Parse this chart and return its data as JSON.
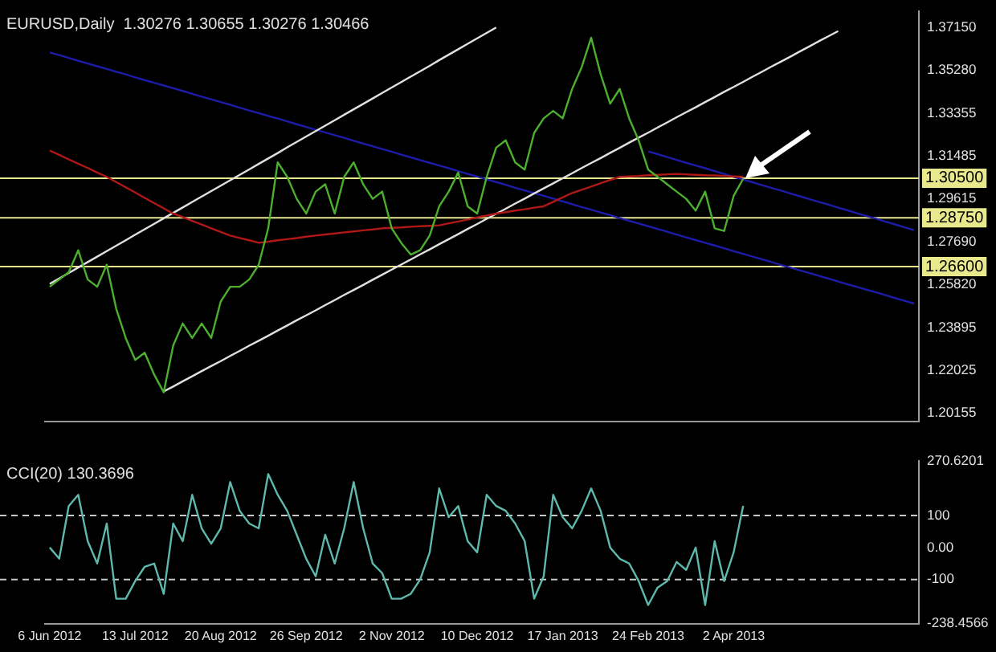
{
  "chart_data": [
    {
      "type": "line",
      "title": "EURUSD,Daily  1.30276 1.30655 1.30276 1.30466",
      "marker": "none",
      "categories": [
        null,
        null,
        null,
        null,
        null,
        null,
        null,
        null,
        null,
        null,
        null,
        null,
        null,
        null,
        null,
        null,
        null,
        null,
        null,
        null,
        null,
        null,
        null,
        null,
        null,
        null,
        null,
        null,
        null,
        null,
        null,
        null,
        null,
        null,
        null,
        null,
        null,
        null,
        null,
        null,
        null,
        null,
        null,
        null,
        null,
        null,
        null,
        null,
        null,
        null,
        null,
        null,
        null,
        null,
        null,
        null,
        null,
        null,
        null,
        null,
        null,
        null,
        null,
        null,
        null,
        null,
        null,
        null,
        null,
        null,
        null,
        null,
        null,
        null,
        null,
        null,
        null,
        null,
        null,
        null,
        null,
        null,
        null,
        null,
        null,
        null,
        null,
        null,
        null,
        null,
        null,
        null
      ],
      "ylim": [
        1.1977,
        1.3786
      ],
      "yticks": [
        {
          "value": 1.3715,
          "label": "1.37150"
        },
        {
          "value": 1.3528,
          "label": "1.35280"
        },
        {
          "value": 1.33355,
          "label": "1.33355"
        },
        {
          "value": 1.31485,
          "label": "1.31485"
        },
        {
          "value": 1.29615,
          "label": "1.29615"
        },
        {
          "value": 1.2769,
          "label": "1.27690"
        },
        {
          "value": 1.2582,
          "label": "1.25820"
        },
        {
          "value": 1.23895,
          "label": "1.23895"
        },
        {
          "value": 1.22025,
          "label": "1.22025"
        },
        {
          "value": 1.20155,
          "label": "1.20155"
        }
      ],
      "ref_lines": [
        {
          "axis": "y",
          "value": 1.305,
          "label": "1.30500",
          "color": "#e8e88c"
        },
        {
          "axis": "y",
          "value": 1.2875,
          "label": "1.28750",
          "color": "#e8e88c"
        },
        {
          "axis": "y",
          "value": 1.266,
          "label": "1.26600",
          "color": "#e8e88c"
        }
      ],
      "series": [
        {
          "color": "#4caf2e",
          "values": [
            1.2571,
            1.2603,
            1.2635,
            1.2732,
            1.2603,
            1.2571,
            1.2668,
            1.2474,
            1.2345,
            1.2248,
            1.228,
            1.2183,
            1.2105,
            1.2312,
            1.2409,
            1.2345,
            1.2409,
            1.2345,
            1.2506,
            1.2571,
            1.2571,
            1.2603,
            1.2668,
            1.2829,
            1.312,
            1.3056,
            1.2959,
            1.2894,
            1.2991,
            1.3023,
            1.2894,
            1.3056,
            1.312,
            1.3023,
            1.2959,
            1.2991,
            1.2829,
            1.2765,
            1.2713,
            1.2732,
            1.2797,
            1.2926,
            1.2991,
            1.3075,
            1.2926,
            1.2894,
            1.3056,
            1.3185,
            1.3217,
            1.312,
            1.3088,
            1.325,
            1.3314,
            1.3347,
            1.3314,
            1.3444,
            1.354,
            1.367,
            1.3508,
            1.3379,
            1.3444,
            1.3314,
            1.3217,
            1.3088,
            1.3056,
            1.3023,
            1.2991,
            1.2959,
            1.2907,
            1.2991,
            1.2829,
            1.2817,
            1.2972,
            1.3047,
            null,
            null,
            null,
            null,
            null,
            null,
            null,
            null,
            null,
            null,
            null,
            null,
            null,
            null,
            null,
            null,
            null,
            null
          ]
        },
        {
          "color": "#b01818",
          "values": [
            1.3172,
            1.3153,
            1.3133,
            1.3114,
            1.3095,
            1.3075,
            1.3056,
            1.3033,
            1.301,
            1.2987,
            1.2963,
            1.294,
            1.2917,
            1.2894,
            1.2878,
            1.2862,
            1.2846,
            1.2829,
            1.2813,
            1.2797,
            1.2786,
            1.2776,
            1.2765,
            1.277,
            1.2776,
            1.2781,
            1.2786,
            1.2792,
            1.2797,
            1.2802,
            1.2806,
            1.2811,
            1.2815,
            1.282,
            1.2824,
            1.2829,
            1.2831,
            1.2833,
            1.2836,
            1.2838,
            1.284,
            1.2842,
            1.2851,
            1.2859,
            1.2868,
            1.2877,
            1.2885,
            1.2894,
            1.29,
            1.2907,
            1.2913,
            1.292,
            1.2926,
            1.2946,
            1.2965,
            1.2985,
            1.2999,
            1.3013,
            1.3028,
            1.3042,
            1.3056,
            1.3058,
            1.306,
            1.3063,
            1.3065,
            1.3067,
            1.3069,
            1.3067,
            1.3065,
            1.3063,
            1.3062,
            1.306,
            1.3058,
            1.3056,
            null,
            null,
            null,
            null,
            null,
            null,
            null,
            null,
            null,
            null,
            null,
            null,
            null,
            null,
            null,
            null,
            null,
            null
          ]
        },
        {
          "color": "#e0e0e0",
          "values": [
            1.2584,
            1.2608,
            1.2632,
            1.2656,
            1.268,
            1.2704,
            1.2728,
            1.2752,
            1.2776,
            1.2801,
            1.2825,
            1.2849,
            1.2873,
            1.2897,
            1.2921,
            1.2945,
            1.2969,
            1.2993,
            1.3017,
            1.3041,
            1.3065,
            1.3089,
            1.3113,
            1.3137,
            1.3161,
            1.3186,
            1.321,
            1.3234,
            1.3258,
            1.3282,
            1.3306,
            1.333,
            1.3354,
            1.3378,
            1.3402,
            1.3426,
            1.345,
            1.3474,
            1.3498,
            1.3522,
            1.3546,
            1.3571,
            1.3595,
            1.3619,
            1.3643,
            1.3667,
            1.3691,
            1.3715,
            null,
            null,
            null,
            null,
            null,
            null,
            null,
            null,
            null,
            null,
            null,
            null,
            null,
            null,
            null,
            null,
            null,
            null,
            null,
            null,
            null,
            null,
            null,
            null,
            null,
            null,
            null,
            null,
            null,
            null,
            null,
            null,
            null,
            null,
            null,
            null,
            null,
            null,
            null,
            null,
            null,
            null,
            null,
            null
          ]
        },
        {
          "color": "#e0e0e0",
          "values": [
            null,
            null,
            null,
            null,
            null,
            null,
            null,
            null,
            null,
            null,
            null,
            null,
            1.2109,
            1.2131,
            1.2154,
            1.2176,
            1.2199,
            1.2221,
            1.2243,
            1.2266,
            1.2288,
            1.2311,
            1.2333,
            1.2355,
            1.2378,
            1.24,
            1.2423,
            1.2445,
            1.2467,
            1.249,
            1.2512,
            1.2535,
            1.2557,
            1.2579,
            1.2602,
            1.2624,
            1.2647,
            1.2669,
            1.2691,
            1.2714,
            1.2736,
            1.2759,
            1.2781,
            1.2803,
            1.2826,
            1.2848,
            1.2871,
            1.2893,
            1.2915,
            1.2938,
            1.296,
            1.2983,
            1.3005,
            1.3027,
            1.305,
            1.3072,
            1.3095,
            1.3117,
            1.3139,
            1.3162,
            1.3184,
            1.3207,
            1.3229,
            1.3251,
            1.3274,
            1.3296,
            1.3319,
            1.3341,
            1.3363,
            1.3386,
            1.3408,
            1.3431,
            1.3453,
            1.3475,
            1.3498,
            1.352,
            1.3543,
            1.3565,
            1.3587,
            1.361,
            1.3632,
            1.3655,
            1.3677,
            1.3699,
            null,
            null,
            null,
            null,
            null,
            null,
            null,
            null
          ]
        },
        {
          "color": "#1c1ca8",
          "values": [
            1.3605,
            1.3593,
            1.3581,
            1.3568,
            1.3556,
            1.3544,
            1.3532,
            1.352,
            1.3508,
            1.3495,
            1.3483,
            1.3471,
            1.3459,
            1.3447,
            1.3435,
            1.3422,
            1.341,
            1.3398,
            1.3386,
            1.3374,
            1.3361,
            1.3349,
            1.3337,
            1.3325,
            1.3313,
            1.3301,
            1.3288,
            1.3276,
            1.3264,
            1.3252,
            1.324,
            1.3228,
            1.3215,
            1.3203,
            1.3191,
            1.3179,
            1.3167,
            1.3154,
            1.3142,
            1.313,
            1.3118,
            1.3106,
            1.3094,
            1.3081,
            1.3069,
            1.3057,
            1.3045,
            1.3033,
            1.3021,
            1.3008,
            1.2996,
            1.2984,
            1.2972,
            1.296,
            1.2948,
            1.2935,
            1.2923,
            1.2911,
            1.2899,
            1.2887,
            1.2874,
            1.2862,
            1.285,
            1.2838,
            1.2826,
            1.2814,
            1.2801,
            1.2789,
            1.2777,
            1.2765,
            1.2753,
            1.2741,
            1.2728,
            1.2716,
            1.2704,
            1.2692,
            1.268,
            1.2667,
            1.2655,
            1.2643,
            1.2631,
            1.2619,
            1.2607,
            1.2594,
            1.2582,
            1.257,
            1.2558,
            1.2546,
            1.2534,
            1.2521,
            1.2509,
            1.2497
          ]
        },
        {
          "color": "#1c1ca8",
          "values": [
            null,
            null,
            null,
            null,
            null,
            null,
            null,
            null,
            null,
            null,
            null,
            null,
            null,
            null,
            null,
            null,
            null,
            null,
            null,
            null,
            null,
            null,
            null,
            null,
            null,
            null,
            null,
            null,
            null,
            null,
            null,
            null,
            null,
            null,
            null,
            null,
            null,
            null,
            null,
            null,
            null,
            null,
            null,
            null,
            null,
            null,
            null,
            null,
            null,
            null,
            null,
            null,
            null,
            null,
            null,
            null,
            null,
            null,
            null,
            null,
            null,
            null,
            null,
            1.3168,
            1.3156,
            1.3143,
            1.3131,
            1.3118,
            1.3106,
            1.3094,
            1.3081,
            1.3069,
            1.3056,
            1.3044,
            1.3032,
            1.3019,
            1.3007,
            1.2995,
            1.2982,
            1.297,
            1.2957,
            1.2945,
            1.2933,
            1.292,
            1.2908,
            1.2895,
            1.2883,
            1.2871,
            1.2858,
            1.2846,
            1.2833,
            1.2821
          ]
        }
      ]
    },
    {
      "type": "line",
      "title": "CCI(20) 130.3696",
      "marker": "none",
      "categories": [
        "6 Jun 2012",
        null,
        null,
        null,
        null,
        null,
        null,
        null,
        null,
        "13 Jul 2012",
        null,
        null,
        null,
        null,
        null,
        null,
        null,
        null,
        "20 Aug 2012",
        null,
        null,
        null,
        null,
        null,
        null,
        null,
        null,
        "26 Sep 2012",
        null,
        null,
        null,
        null,
        null,
        null,
        null,
        null,
        "2 Nov 2012",
        null,
        null,
        null,
        null,
        null,
        null,
        null,
        null,
        "10 Dec 2012",
        null,
        null,
        null,
        null,
        null,
        null,
        null,
        null,
        "17 Jan 2013",
        null,
        null,
        null,
        null,
        null,
        null,
        null,
        null,
        "24 Feb 2013",
        null,
        null,
        null,
        null,
        null,
        null,
        null,
        null,
        "2 Apr 2013",
        null,
        null,
        null,
        null,
        null,
        null,
        null,
        null,
        null,
        null,
        null,
        null,
        null,
        null,
        null,
        null,
        null,
        null,
        null
      ],
      "ylim": [
        -238.4566,
        270.6201
      ],
      "yticks": [
        {
          "value": 270.6201,
          "label": "270.6201"
        },
        100,
        {
          "value": 0,
          "label": "0.00"
        },
        -100,
        {
          "value": -238.4566,
          "label": "-238.4566"
        }
      ],
      "ref_lines": [
        {
          "axis": "y",
          "value": 100,
          "color": "#c8c8c8",
          "line_style": "dashed"
        },
        {
          "axis": "y",
          "value": -100,
          "color": "#c8c8c8",
          "line_style": "dashed"
        }
      ],
      "series": [
        {
          "color": "#5fb8ac",
          "values": [
            0,
            -35,
            130,
            165,
            20,
            -50,
            75,
            -160,
            -160,
            -105,
            -60,
            -50,
            -145,
            75,
            20,
            165,
            60,
            12,
            60,
            205,
            115,
            75,
            60,
            230,
            165,
            115,
            40,
            -35,
            -90,
            40,
            -50,
            60,
            205,
            60,
            -50,
            -80,
            -160,
            -160,
            -145,
            -100,
            -15,
            185,
            95,
            130,
            20,
            -15,
            165,
            130,
            115,
            75,
            20,
            -160,
            -90,
            165,
            95,
            60,
            115,
            185,
            115,
            0,
            -35,
            -50,
            -105,
            -180,
            -125,
            -105,
            -45,
            -70,
            0,
            -180,
            20,
            -105,
            -15,
            130.3696,
            null,
            null,
            null,
            null,
            null,
            null,
            null,
            null,
            null,
            null,
            null,
            null,
            null,
            null,
            null,
            null,
            null,
            null
          ]
        }
      ]
    }
  ]
}
